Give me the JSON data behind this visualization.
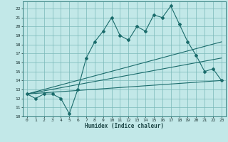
{
  "xlabel": "Humidex (Indice chaleur)",
  "bg_color": "#c2e8e8",
  "grid_color": "#7ab8b8",
  "line_color": "#1a6b6b",
  "xlim": [
    -0.5,
    23.5
  ],
  "ylim": [
    10.0,
    22.8
  ],
  "yticks": [
    10,
    11,
    12,
    13,
    14,
    15,
    16,
    17,
    18,
    19,
    20,
    21,
    22
  ],
  "xticks": [
    0,
    1,
    2,
    3,
    4,
    5,
    6,
    7,
    8,
    9,
    10,
    11,
    12,
    13,
    14,
    15,
    16,
    17,
    18,
    19,
    20,
    21,
    22,
    23
  ],
  "series1_x": [
    0,
    1,
    2,
    3,
    4,
    5,
    6,
    7,
    8,
    9,
    10,
    11,
    12,
    13,
    14,
    15,
    16,
    17,
    18,
    19,
    20,
    21,
    22,
    23
  ],
  "series1_y": [
    12.5,
    12.0,
    12.5,
    12.5,
    12.0,
    10.3,
    13.0,
    16.5,
    18.3,
    19.5,
    21.0,
    19.0,
    18.5,
    20.0,
    19.5,
    21.3,
    21.0,
    22.3,
    20.3,
    18.3,
    16.8,
    15.0,
    15.3,
    14.0
  ],
  "series2_x": [
    0,
    23
  ],
  "series2_y": [
    12.5,
    18.3
  ],
  "series3_x": [
    0,
    23
  ],
  "series3_y": [
    12.5,
    16.5
  ],
  "series4_x": [
    0,
    23
  ],
  "series4_y": [
    12.5,
    14.0
  ]
}
